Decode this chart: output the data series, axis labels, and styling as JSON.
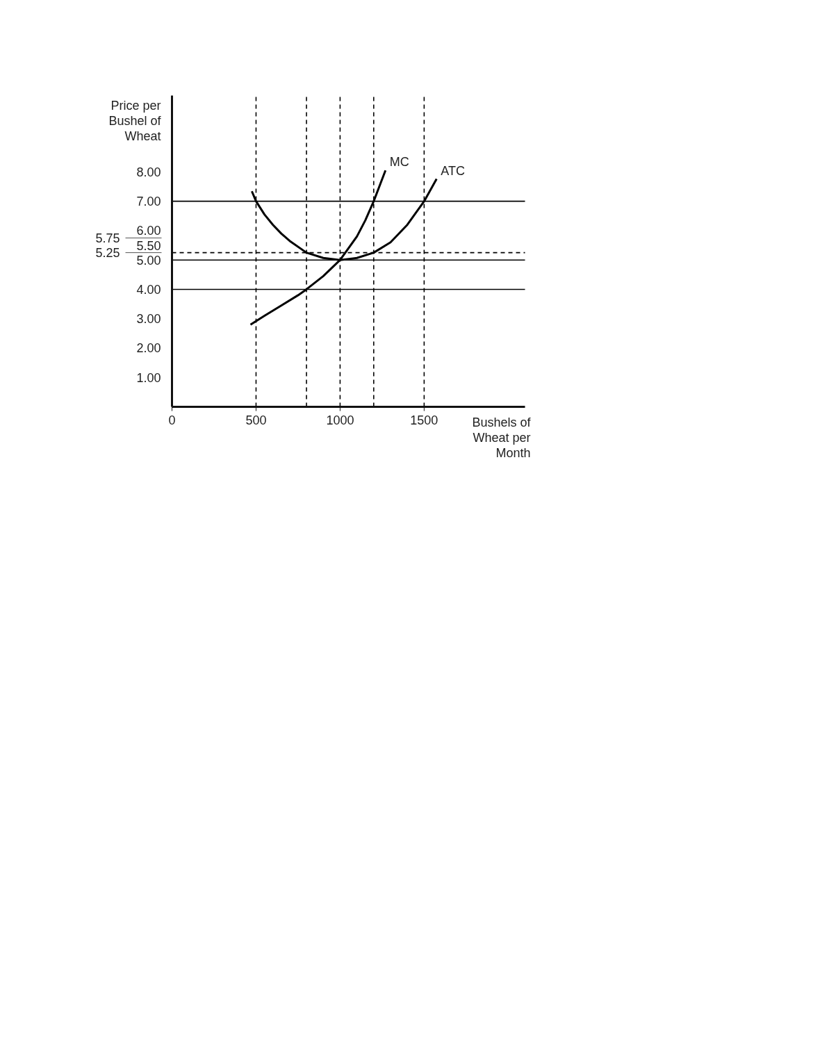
{
  "chart_data": {
    "type": "line",
    "xlabel": "Bushels of Wheat per Month",
    "ylabel": "Price per Bushel of Wheat",
    "xlim": [
      0,
      2100
    ],
    "ylim": [
      0,
      10.6
    ],
    "xticks": [
      {
        "value": 0,
        "label": "0"
      },
      500,
      1000,
      1500
    ],
    "yticks": [
      {
        "value": 1,
        "label": "1.00"
      },
      {
        "value": 2,
        "label": "2.00"
      },
      {
        "value": 3,
        "label": "3.00"
      },
      {
        "value": 4,
        "label": "4.00"
      },
      {
        "value": 5,
        "label": "5.00"
      },
      {
        "value": 5.5,
        "label": "5.50"
      },
      {
        "value": 6,
        "label": "6.00"
      },
      {
        "value": 7,
        "label": "7.00"
      },
      {
        "value": 8,
        "label": "8.00"
      }
    ],
    "y2lim": [
      0,
      10.6
    ],
    "y2ticks": [
      {
        "value": 5.75,
        "label": "5.75"
      },
      {
        "value": 5.25,
        "label": "5.25"
      }
    ],
    "grid": false,
    "legend": false,
    "marker": "none",
    "line_style": "solid",
    "series": [
      {
        "name": "MC",
        "color": "#000000",
        "x": [
          467,
          550,
          650,
          750,
          800,
          900,
          1000,
          1100,
          1150,
          1200,
          1240,
          1270
        ],
        "values": [
          2.8,
          3.1,
          3.45,
          3.8,
          4.0,
          4.45,
          5.0,
          5.8,
          6.35,
          7.0,
          7.6,
          8.05
        ]
      },
      {
        "name": "ATC",
        "color": "#000000",
        "x": [
          475,
          500,
          550,
          600,
          650,
          700,
          800,
          900,
          1000,
          1100,
          1200,
          1300,
          1400,
          1500,
          1574
        ],
        "values": [
          7.34,
          7.0,
          6.55,
          6.2,
          5.9,
          5.65,
          5.25,
          5.07,
          5.0,
          5.07,
          5.25,
          5.6,
          6.2,
          7.0,
          7.76
        ]
      }
    ],
    "ref_lines": [
      {
        "axis": "y",
        "value": 7,
        "color": "#000000",
        "line_style": "solid"
      },
      {
        "axis": "y",
        "value": 5,
        "color": "#000000",
        "line_style": "solid"
      },
      {
        "axis": "y",
        "value": 4,
        "color": "#000000",
        "line_style": "solid"
      },
      {
        "axis": "y",
        "value": 5.25,
        "color": "#000000",
        "line_style": "dashed"
      },
      {
        "axis": "x",
        "value": 500,
        "color": "#000000",
        "line_style": "dashed"
      },
      {
        "axis": "x",
        "value": 800,
        "color": "#000000",
        "line_style": "dashed"
      },
      {
        "axis": "x",
        "value": 1000,
        "color": "#000000",
        "line_style": "dashed"
      },
      {
        "axis": "x",
        "value": 1200,
        "color": "#000000",
        "line_style": "dashed"
      },
      {
        "axis": "x",
        "value": 1500,
        "color": "#000000",
        "line_style": "dashed"
      }
    ]
  }
}
